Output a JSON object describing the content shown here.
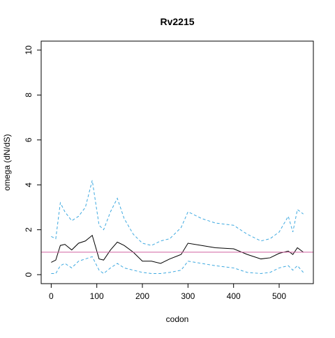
{
  "chart_data": {
    "type": "line",
    "title": "Rv2215",
    "xlabel": "codon",
    "ylabel": "omega (dN/dS)",
    "x": [
      0,
      10,
      20,
      30,
      45,
      60,
      75,
      90,
      105,
      115,
      130,
      145,
      160,
      180,
      200,
      220,
      240,
      260,
      285,
      300,
      330,
      360,
      400,
      430,
      460,
      480,
      500,
      520,
      530,
      540,
      553
    ],
    "series": [
      {
        "color": "#000000",
        "dashed": false,
        "values": [
          0.55,
          0.65,
          1.3,
          1.35,
          1.1,
          1.4,
          1.5,
          1.75,
          0.7,
          0.65,
          1.1,
          1.45,
          1.3,
          1.0,
          0.6,
          0.6,
          0.5,
          0.7,
          0.9,
          1.4,
          1.3,
          1.2,
          1.15,
          0.9,
          0.7,
          0.75,
          0.95,
          1.05,
          0.9,
          1.2,
          1.0
        ]
      },
      {
        "color": "#3ea9e0",
        "dashed": true,
        "values": [
          1.7,
          1.6,
          3.2,
          2.8,
          2.4,
          2.6,
          3.0,
          4.2,
          2.2,
          2.0,
          2.8,
          3.4,
          2.5,
          1.8,
          1.4,
          1.3,
          1.5,
          1.6,
          2.1,
          2.8,
          2.5,
          2.3,
          2.2,
          1.8,
          1.5,
          1.6,
          1.9,
          2.6,
          1.9,
          2.9,
          2.7
        ]
      },
      {
        "color": "#3ea9e0",
        "dashed": true,
        "values": [
          0.05,
          0.05,
          0.4,
          0.5,
          0.3,
          0.6,
          0.7,
          0.8,
          0.2,
          0.05,
          0.3,
          0.5,
          0.3,
          0.2,
          0.1,
          0.05,
          0.05,
          0.1,
          0.2,
          0.6,
          0.5,
          0.4,
          0.3,
          0.1,
          0.05,
          0.1,
          0.3,
          0.4,
          0.2,
          0.4,
          0.1
        ]
      }
    ],
    "hline": {
      "value": 1,
      "color": "#d060a0"
    },
    "xlim": [
      -22,
      575
    ],
    "ylim": [
      -0.4,
      10.4
    ],
    "xticks": [
      0,
      100,
      200,
      300,
      400,
      500
    ],
    "yticks": [
      0,
      2,
      4,
      6,
      8,
      10
    ]
  }
}
